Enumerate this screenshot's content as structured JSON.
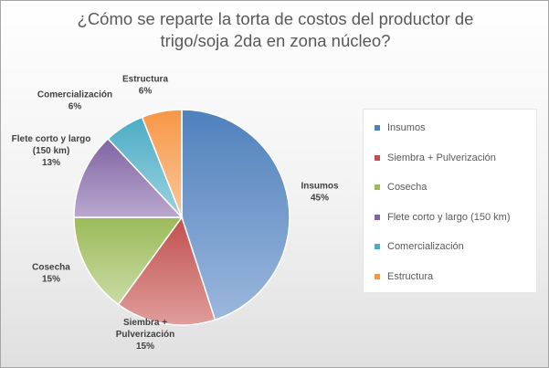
{
  "chart_data": {
    "type": "pie",
    "title": "¿Cómo se reparte la torta de costos del productor de trigo/soja 2da en zona núcleo?",
    "title_lines": [
      "¿Cómo se reparte la torta de costos del productor de",
      "trigo/soja 2da en zona núcleo?"
    ],
    "slices": [
      {
        "label": "Insumos",
        "value": 45,
        "pct_label": "45%",
        "label_lines": [
          "Insumos"
        ],
        "color": "#4f81bd",
        "color_light": "#9bb7dc"
      },
      {
        "label": "Siembra + Pulverización",
        "value": 15,
        "pct_label": "15%",
        "label_lines": [
          "Siembra +",
          "Pulverización"
        ],
        "color": "#c0504d",
        "color_light": "#e09d9b"
      },
      {
        "label": "Cosecha",
        "value": 15,
        "pct_label": "15%",
        "label_lines": [
          "Cosecha"
        ],
        "color": "#9bbb59",
        "color_light": "#cadba6"
      },
      {
        "label": "Flete corto y largo (150 km)",
        "value": 13,
        "pct_label": "13%",
        "label_lines": [
          "Flete corto y largo",
          "(150 km)"
        ],
        "color": "#8064a2",
        "color_light": "#baa8cf"
      },
      {
        "label": "Comercialización",
        "value": 6,
        "pct_label": "6%",
        "label_lines": [
          "Comercialización"
        ],
        "color": "#4bacc6",
        "color_light": "#9dd2e1"
      },
      {
        "label": "Estructura",
        "value": 6,
        "pct_label": "6%",
        "label_lines": [
          "Estructura"
        ],
        "color": "#f79646",
        "color_light": "#fbc79a"
      }
    ],
    "legend_position": "right"
  }
}
